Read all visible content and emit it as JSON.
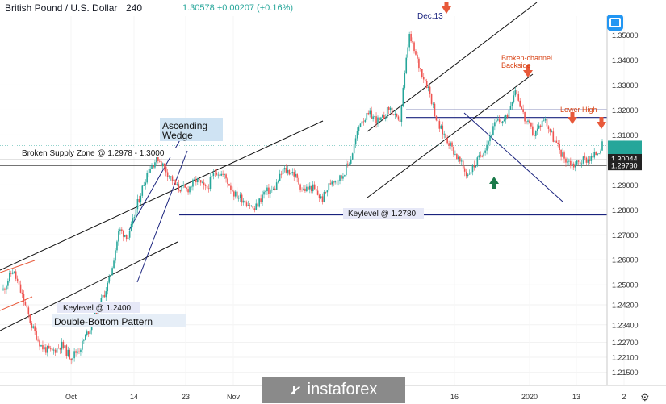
{
  "header": {
    "symbol": "British Pound / U.S. Dollar",
    "timeframe": "240",
    "quote": "1.30578 +0.00207 (+0.16%)"
  },
  "chart_data": {
    "type": "candlestick",
    "x_tick_labels": [
      "Oct",
      "14",
      "23",
      "Nov",
      "16",
      "2020",
      "13",
      "2"
    ],
    "y_tick_labels": [
      "1.35000",
      "1.34000",
      "1.33000",
      "1.32000",
      "1.31000",
      "1.30000",
      "1.29000",
      "1.28000",
      "1.27000",
      "1.26000",
      "1.25000",
      "1.24200",
      "1.23400",
      "1.22700",
      "1.22100",
      "1.21500"
    ],
    "ylim": [
      1.211,
      1.355
    ],
    "price_series": [
      1.248,
      1.256,
      1.245,
      1.233,
      1.225,
      1.223,
      1.226,
      1.221,
      1.225,
      1.233,
      1.242,
      1.252,
      1.272,
      1.269,
      1.284,
      1.296,
      1.301,
      1.295,
      1.289,
      1.288,
      1.292,
      1.288,
      1.296,
      1.293,
      1.286,
      1.284,
      1.28,
      1.287,
      1.288,
      1.296,
      1.295,
      1.288,
      1.289,
      1.284,
      1.292,
      1.293,
      1.301,
      1.316,
      1.318,
      1.315,
      1.321,
      1.314,
      1.35,
      1.338,
      1.329,
      1.314,
      1.308,
      1.301,
      1.294,
      1.299,
      1.306,
      1.315,
      1.316,
      1.329,
      1.316,
      1.31,
      1.317,
      1.308,
      1.301,
      1.298,
      1.3,
      1.301,
      1.3058
    ],
    "price_labels": [
      {
        "text": "1.30578",
        "value": 1.30578,
        "color": "#26a69a"
      },
      {
        "text": "03:47:08",
        "value": 1.3035,
        "color": "#26a69a"
      },
      {
        "text": "1.30044",
        "value": 1.30044,
        "color": "#ffffff"
      },
      {
        "text": "1.29780",
        "value": 1.2978,
        "color": "#ffffff"
      }
    ],
    "annotations": [
      {
        "text": "Ascending Wedge",
        "lines": [
          "Ascending",
          "Wedge"
        ]
      },
      {
        "text": "Broken Supply Zone @ 1.2978 - 1.3000"
      },
      {
        "text": "Keylevel @ 1.2780"
      },
      {
        "text": "Keylevel @ 1.2400"
      },
      {
        "text": "Double-Bottom Pattern"
      },
      {
        "text": "Dec.13"
      },
      {
        "text": "Broken-channel Backside",
        "lines": [
          "Broken-channel",
          "Backside"
        ]
      },
      {
        "text": "Lower High"
      }
    ],
    "horizontal_levels": [
      1.3,
      1.2978,
      1.278,
      1.32,
      1.317,
      1.3058
    ],
    "colors": {
      "up": "#26a69a",
      "down": "#ef5350",
      "level": "#1a237e",
      "marker": "#e8593a"
    }
  },
  "watermark": "instaforex"
}
